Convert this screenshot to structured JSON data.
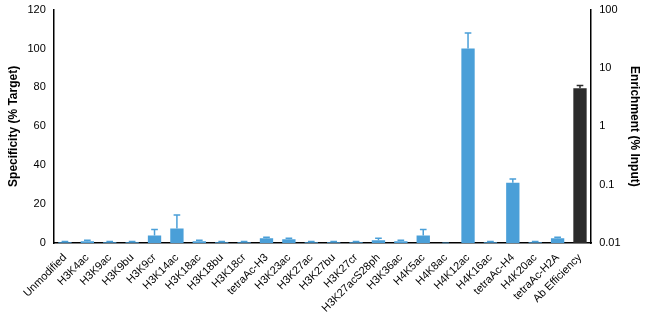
{
  "chart_data": {
    "type": "bar",
    "categories": [
      "Unmodified",
      "H3K4ac",
      "H3K9ac",
      "H3K9bu",
      "H3K9cr",
      "H3K14ac",
      "H3K18ac",
      "H3K18bu",
      "H3K18cr",
      "tetraAc-H3",
      "H3K23ac",
      "H3K27ac",
      "H3K27bu",
      "H3K27cr",
      "H3K27acS28ph",
      "H3K36ac",
      "H4K5ac",
      "H4K8ac",
      "H4K12ac",
      "H4K16ac",
      "tetraAc-H4",
      "H4K20ac",
      "tetraAc-H2A",
      "Ab Efficiency"
    ],
    "y_label": "Specificity (% Target)",
    "y2_label": "Enrichment (% Input)",
    "series": [
      {
        "color": "#4a9fd8",
        "axis": "y",
        "values": [
          0.5,
          1,
          0.5,
          0.5,
          4,
          7.5,
          1,
          0.5,
          0.5,
          2.5,
          2,
          0.5,
          0.5,
          0.5,
          1.5,
          1,
          4,
          0,
          100,
          0.5,
          31,
          0.5,
          2.5,
          null
        ],
        "errors": [
          0.3,
          0.5,
          0.3,
          0.3,
          3,
          7,
          0.5,
          0.3,
          0.3,
          0.5,
          0.5,
          0.3,
          0.3,
          0.3,
          1,
          0.5,
          3,
          0,
          8,
          0.3,
          2,
          0.3,
          0.5,
          null
        ]
      },
      {
        "color": "#2b2b2b",
        "axis": "y2",
        "values": [
          null,
          null,
          null,
          null,
          null,
          null,
          null,
          null,
          null,
          null,
          null,
          null,
          null,
          null,
          null,
          null,
          null,
          null,
          null,
          null,
          null,
          null,
          null,
          4.5
        ],
        "errors": [
          null,
          null,
          null,
          null,
          null,
          null,
          null,
          null,
          null,
          null,
          null,
          null,
          null,
          null,
          null,
          null,
          null,
          null,
          null,
          null,
          null,
          null,
          null,
          0.5
        ]
      }
    ],
    "ylim": [
      0,
      120
    ],
    "yticks": [
      0,
      20,
      40,
      60,
      80,
      100,
      120
    ],
    "y2lim": [
      0.01,
      100
    ],
    "y2ticks": [
      0.01,
      0.1,
      1,
      10,
      100
    ],
    "log": "y2",
    "grid": false
  }
}
